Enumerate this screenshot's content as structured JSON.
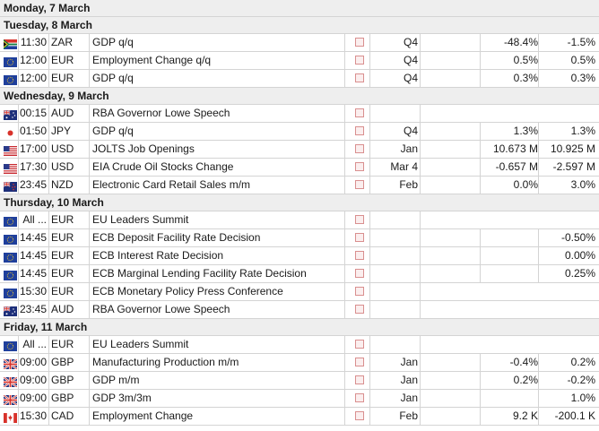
{
  "days": [
    {
      "label": "Monday, 7 March",
      "events": []
    },
    {
      "label": "Tuesday, 8 March",
      "events": [
        {
          "flag": "za",
          "time": "11:30",
          "currency": "ZAR",
          "name": "GDP q/q",
          "period": "Q4",
          "actual": "-48.4%",
          "previous": "-1.5%"
        },
        {
          "flag": "eu",
          "time": "12:00",
          "currency": "EUR",
          "name": "Employment Change q/q",
          "period": "Q4",
          "actual": "0.5%",
          "previous": "0.5%"
        },
        {
          "flag": "eu",
          "time": "12:00",
          "currency": "EUR",
          "name": "GDP q/q",
          "period": "Q4",
          "actual": "0.3%",
          "previous": "0.3%"
        }
      ]
    },
    {
      "label": "Wednesday, 9 March",
      "events": [
        {
          "flag": "au",
          "time": "00:15",
          "currency": "AUD",
          "name": "RBA Governor Lowe Speech",
          "period": "",
          "actual": "",
          "previous": "",
          "short": true
        },
        {
          "flag": "jp",
          "time": "01:50",
          "currency": "JPY",
          "name": "GDP q/q",
          "period": "Q4",
          "actual": "1.3%",
          "previous": "1.3%"
        },
        {
          "flag": "us",
          "time": "17:00",
          "currency": "USD",
          "name": "JOLTS Job Openings",
          "period": "Jan",
          "actual": "10.673 M",
          "previous": "10.925 M"
        },
        {
          "flag": "us",
          "time": "17:30",
          "currency": "USD",
          "name": "EIA Crude Oil Stocks Change",
          "period": "Mar 4",
          "actual": "-0.657 M",
          "previous": "-2.597 M"
        },
        {
          "flag": "nz",
          "time": "23:45",
          "currency": "NZD",
          "name": "Electronic Card Retail Sales m/m",
          "period": "Feb",
          "actual": "0.0%",
          "previous": "3.0%"
        }
      ]
    },
    {
      "label": "Thursday, 10 March",
      "events": [
        {
          "flag": "eu",
          "time": "All ...",
          "currency": "EUR",
          "name": "EU Leaders Summit",
          "period": "",
          "actual": "",
          "previous": "",
          "short": true
        },
        {
          "flag": "eu",
          "time": "14:45",
          "currency": "EUR",
          "name": "ECB Deposit Facility Rate Decision",
          "period": "",
          "actual": "",
          "previous": "-0.50%"
        },
        {
          "flag": "eu",
          "time": "14:45",
          "currency": "EUR",
          "name": "ECB Interest Rate Decision",
          "period": "",
          "actual": "",
          "previous": "0.00%"
        },
        {
          "flag": "eu",
          "time": "14:45",
          "currency": "EUR",
          "name": "ECB Marginal Lending Facility Rate Decision",
          "period": "",
          "actual": "",
          "previous": "0.25%"
        },
        {
          "flag": "eu",
          "time": "15:30",
          "currency": "EUR",
          "name": "ECB Monetary Policy Press Conference",
          "period": "",
          "actual": "",
          "previous": "",
          "short": true
        },
        {
          "flag": "au",
          "time": "23:45",
          "currency": "AUD",
          "name": "RBA Governor Lowe Speech",
          "period": "",
          "actual": "",
          "previous": "",
          "short": true
        }
      ]
    },
    {
      "label": "Friday, 11 March",
      "events": [
        {
          "flag": "eu",
          "time": "All ...",
          "currency": "EUR",
          "name": "EU Leaders Summit",
          "period": "",
          "actual": "",
          "previous": "",
          "short": true
        },
        {
          "flag": "gb",
          "time": "09:00",
          "currency": "GBP",
          "name": "Manufacturing Production m/m",
          "period": "Jan",
          "actual": "-0.4%",
          "previous": "0.2%"
        },
        {
          "flag": "gb",
          "time": "09:00",
          "currency": "GBP",
          "name": "GDP m/m",
          "period": "Jan",
          "actual": "0.2%",
          "previous": "-0.2%"
        },
        {
          "flag": "gb",
          "time": "09:00",
          "currency": "GBP",
          "name": "GDP 3m/3m",
          "period": "Jan",
          "actual": "",
          "previous": "1.0%"
        },
        {
          "flag": "ca",
          "time": "15:30",
          "currency": "CAD",
          "name": "Employment Change",
          "period": "Feb",
          "actual": "9.2 K",
          "previous": "-200.1 K"
        }
      ]
    }
  ]
}
